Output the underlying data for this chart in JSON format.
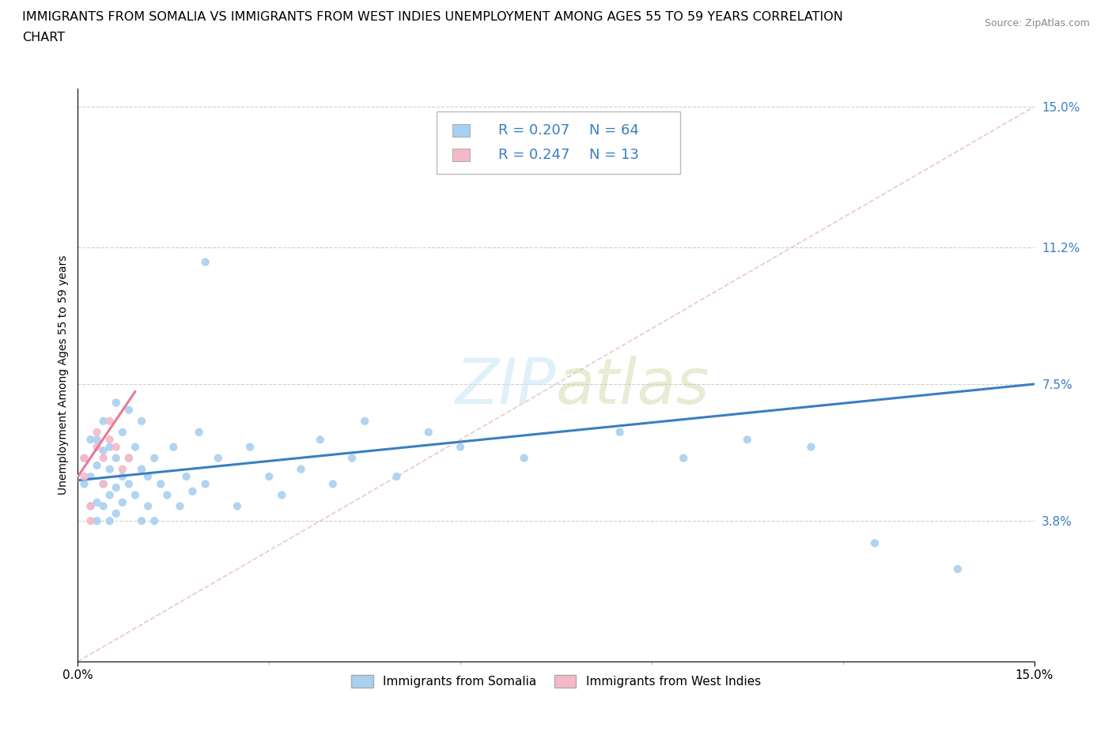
{
  "title_line1": "IMMIGRANTS FROM SOMALIA VS IMMIGRANTS FROM WEST INDIES UNEMPLOYMENT AMONG AGES 55 TO 59 YEARS CORRELATION",
  "title_line2": "CHART",
  "source": "Source: ZipAtlas.com",
  "ylabel": "Unemployment Among Ages 55 to 59 years",
  "xlim": [
    0.0,
    0.15
  ],
  "ylim": [
    0.0,
    0.155
  ],
  "ytick_labels": [
    "3.8%",
    "7.5%",
    "11.2%",
    "15.0%"
  ],
  "ytick_positions": [
    0.038,
    0.075,
    0.112,
    0.15
  ],
  "xtick_labels": [
    "0.0%",
    "15.0%"
  ],
  "xtick_positions": [
    0.0,
    0.15
  ],
  "watermark_text": "ZIPatlas",
  "legend_r1": "R = 0.207",
  "legend_n1": "N = 64",
  "legend_r2": "R = 0.247",
  "legend_n2": "N = 13",
  "color_somalia": "#a8d0f0",
  "color_west_indies": "#f5b8c8",
  "color_line_somalia": "#3a7fc1",
  "color_line_west_indies": "#e87898",
  "color_diagonal": "#e8b8c0",
  "somalia_x": [
    0.001,
    0.001,
    0.002,
    0.002,
    0.002,
    0.003,
    0.003,
    0.003,
    0.003,
    0.004,
    0.004,
    0.004,
    0.004,
    0.005,
    0.005,
    0.005,
    0.005,
    0.006,
    0.006,
    0.006,
    0.006,
    0.007,
    0.007,
    0.007,
    0.008,
    0.008,
    0.008,
    0.009,
    0.009,
    0.01,
    0.01,
    0.01,
    0.011,
    0.011,
    0.012,
    0.012,
    0.013,
    0.014,
    0.015,
    0.016,
    0.017,
    0.018,
    0.019,
    0.02,
    0.022,
    0.025,
    0.027,
    0.03,
    0.032,
    0.035,
    0.038,
    0.04,
    0.043,
    0.045,
    0.05,
    0.055,
    0.06,
    0.07,
    0.085,
    0.095,
    0.105,
    0.115,
    0.125,
    0.138
  ],
  "somalia_y": [
    0.048,
    0.055,
    0.042,
    0.05,
    0.06,
    0.038,
    0.043,
    0.053,
    0.06,
    0.042,
    0.048,
    0.057,
    0.065,
    0.038,
    0.045,
    0.052,
    0.058,
    0.04,
    0.047,
    0.055,
    0.07,
    0.043,
    0.05,
    0.062,
    0.048,
    0.055,
    0.068,
    0.045,
    0.058,
    0.038,
    0.052,
    0.065,
    0.042,
    0.05,
    0.038,
    0.055,
    0.048,
    0.045,
    0.058,
    0.042,
    0.05,
    0.046,
    0.062,
    0.048,
    0.055,
    0.042,
    0.058,
    0.05,
    0.045,
    0.052,
    0.06,
    0.048,
    0.055,
    0.065,
    0.05,
    0.062,
    0.058,
    0.055,
    0.062,
    0.055,
    0.06,
    0.058,
    0.032,
    0.025
  ],
  "somalia_y_outlier": [
    0.108
  ],
  "somalia_x_outlier": [
    0.02
  ],
  "west_indies_x": [
    0.001,
    0.001,
    0.002,
    0.002,
    0.003,
    0.003,
    0.004,
    0.004,
    0.005,
    0.005,
    0.006,
    0.007,
    0.008
  ],
  "west_indies_y": [
    0.05,
    0.055,
    0.038,
    0.042,
    0.058,
    0.062,
    0.048,
    0.055,
    0.06,
    0.065,
    0.058,
    0.052,
    0.055
  ],
  "title_fontsize": 11.5,
  "axis_label_fontsize": 10,
  "tick_fontsize": 11,
  "legend_fontsize": 13,
  "source_fontsize": 9
}
